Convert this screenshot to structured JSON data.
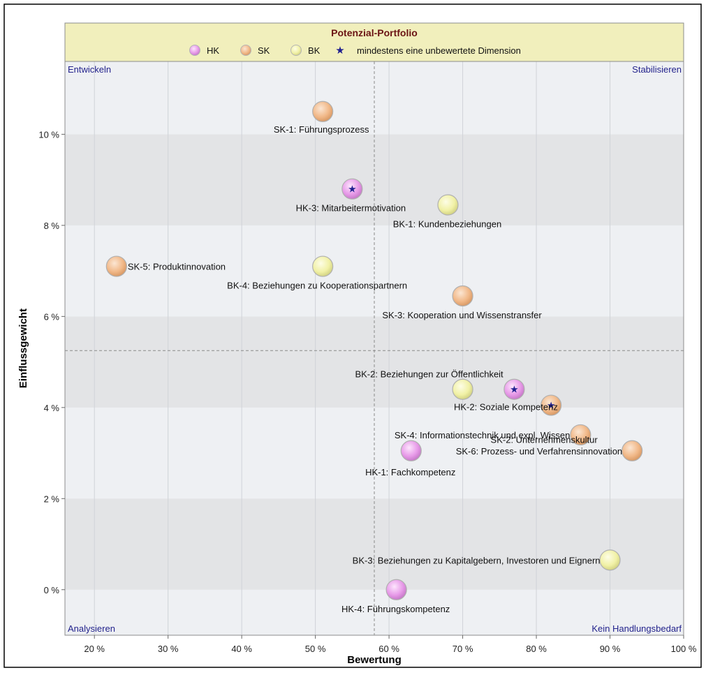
{
  "chart_data": {
    "type": "scatter",
    "title": "Potenzial-Portfolio",
    "xlabel": "Bewertung",
    "ylabel": "Einflussgewicht",
    "xlim": [
      16,
      100
    ],
    "ylim": [
      -1,
      11.6
    ],
    "x_ticks": [
      20,
      30,
      40,
      50,
      60,
      70,
      80,
      90,
      100
    ],
    "x_tick_labels": [
      "20 %",
      "30 %",
      "40 %",
      "50 %",
      "60 %",
      "70 %",
      "80 %",
      "90 %",
      "100 %"
    ],
    "y_ticks": [
      0,
      2,
      4,
      6,
      8,
      10
    ],
    "y_tick_labels": [
      "0 %",
      "2 %",
      "4 %",
      "6 %",
      "8 %",
      "10 %"
    ],
    "grid": true,
    "legend_position": "top",
    "divider_x": 58,
    "divider_y": 5.25,
    "quadrant_labels": {
      "top_left": "Entwickeln",
      "top_right": "Stabilisieren",
      "bottom_left": "Analysieren",
      "bottom_right": "Kein Handlungsbedarf"
    },
    "legend": [
      {
        "key": "HK",
        "label": "HK"
      },
      {
        "key": "SK",
        "label": "SK"
      },
      {
        "key": "BK",
        "label": "BK"
      },
      {
        "key": "star",
        "label": "mindestens eine unbewertete Dimension"
      }
    ],
    "colors": {
      "HK": "#e79ae8",
      "SK": "#f1b888",
      "BK": "#f1f1a6",
      "star": "#1f1f8f",
      "quadrant_text": "#23238c",
      "title": "#6b1414",
      "header_bg": "#f1efbc"
    },
    "points": [
      {
        "id": "SK-1",
        "group": "SK",
        "x": 51,
        "y": 10.5,
        "label": "SK-1: Führungsprozess",
        "star": false
      },
      {
        "id": "HK-3",
        "group": "HK",
        "x": 55,
        "y": 8.8,
        "label": "HK-3: Mitarbeitermotivation",
        "star": true
      },
      {
        "id": "BK-1",
        "group": "BK",
        "x": 68,
        "y": 8.45,
        "label": "BK-1: Kundenbeziehungen",
        "star": false
      },
      {
        "id": "SK-5",
        "group": "SK",
        "x": 23,
        "y": 7.1,
        "label": "SK-5: Produktinnovation",
        "star": false
      },
      {
        "id": "BK-4",
        "group": "BK",
        "x": 51,
        "y": 7.1,
        "label": "BK-4: Beziehungen zu Kooperationspartnern",
        "star": false
      },
      {
        "id": "SK-3",
        "group": "SK",
        "x": 70,
        "y": 6.45,
        "label": "SK-3: Kooperation und Wissenstransfer",
        "star": false
      },
      {
        "id": "BK-2",
        "group": "BK",
        "x": 70,
        "y": 4.4,
        "label": "BK-2: Beziehungen zur Öffentlichkeit",
        "star": false
      },
      {
        "id": "HK-2",
        "group": "HK",
        "x": 77,
        "y": 4.4,
        "label": "HK-2: Soziale Kompetenz",
        "star": true
      },
      {
        "id": "SK-2",
        "group": "SK",
        "x": 82,
        "y": 4.05,
        "label": "SK-2: Unternehmenskultur",
        "star": true
      },
      {
        "id": "SK-4",
        "group": "SK",
        "x": 86,
        "y": 3.4,
        "label": "SK-4: Informationstechnik und expl. Wissen",
        "star": false
      },
      {
        "id": "HK-1",
        "group": "HK",
        "x": 63,
        "y": 3.05,
        "label": "HK-1: Fachkompetenz",
        "star": false
      },
      {
        "id": "SK-6",
        "group": "SK",
        "x": 93,
        "y": 3.05,
        "label": "SK-6: Prozess- und Verfahrensinnovation",
        "star": false
      },
      {
        "id": "BK-3",
        "group": "BK",
        "x": 90,
        "y": 0.65,
        "label": "BK-3: Beziehungen zu Kapitalgebern, Investoren und Eignern",
        "star": false
      },
      {
        "id": "HK-4",
        "group": "HK",
        "x": 61,
        "y": 0.0,
        "label": "HK-4: Führungskompetenz",
        "star": false
      }
    ]
  }
}
